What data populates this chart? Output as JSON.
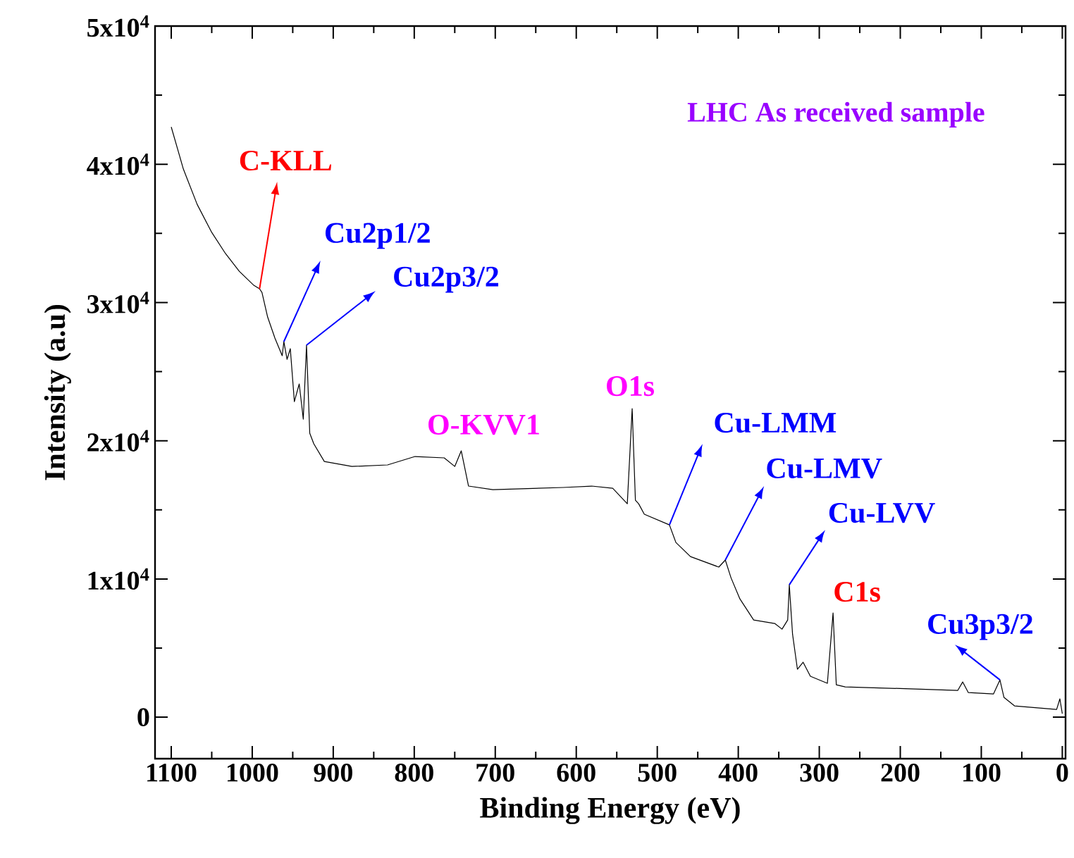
{
  "chart_data": {
    "type": "line",
    "xlabel": "Binding Energy (eV)",
    "ylabel": "Intensity (a.u)",
    "xlim": [
      1120,
      -4
    ],
    "ylim": [
      -3000,
      50000
    ],
    "xticks": [
      1100,
      1000,
      900,
      800,
      700,
      600,
      500,
      400,
      300,
      200,
      100,
      0
    ],
    "yticks": [
      0,
      {
        "value": 10000,
        "label": "1x10$^{4}$"
      },
      {
        "value": 20000,
        "label": "2x10$^{4}$"
      },
      {
        "value": 30000,
        "label": "3x10$^{4}$"
      },
      {
        "value": 40000,
        "label": "4x10$^{4}$"
      },
      {
        "value": 50000,
        "label": "5x10$^{4}$"
      }
    ],
    "grid": false,
    "marker": "none",
    "line_style": "solid",
    "series": [
      {
        "color": "#000000",
        "x": [
          1100,
          1085,
          1068,
          1050,
          1033,
          1016,
          998,
          991,
          988,
          981,
          972,
          963,
          961,
          957,
          953,
          948,
          942,
          937,
          933,
          929,
          924,
          911,
          877,
          833,
          799,
          763,
          750,
          742,
          733,
          703,
          616,
          581,
          555,
          537,
          531,
          527,
          523,
          516,
          485,
          477,
          459,
          424,
          416,
          409,
          398,
          381,
          355,
          346,
          339,
          337,
          333,
          327,
          320,
          311,
          290,
          283,
          279,
          268,
          181,
          129,
          123,
          116,
          85,
          77,
          72,
          59,
          7,
          3,
          0
        ],
        "values": [
          42700,
          39650,
          37100,
          35070,
          33540,
          32260,
          31240,
          30990,
          30730,
          28950,
          27420,
          26150,
          27170,
          25890,
          26660,
          22830,
          24110,
          21560,
          26910,
          20540,
          19780,
          18500,
          18140,
          18250,
          18860,
          18760,
          18140,
          19270,
          16720,
          16460,
          16620,
          16720,
          16560,
          15440,
          22320,
          15700,
          15440,
          14680,
          13910,
          12640,
          11620,
          10860,
          11370,
          10090,
          8560,
          7030,
          6780,
          6370,
          7030,
          9580,
          6010,
          3470,
          3980,
          2960,
          2450,
          7540,
          2340,
          2190,
          2040,
          1940,
          2550,
          1780,
          1680,
          2700,
          1430,
          820,
          560,
          1330,
          250
        ]
      }
    ],
    "annotations": [
      {
        "text": "C-KLL",
        "x": 991,
        "y": 30990
      },
      {
        "text": "Cu2p1/2",
        "x": 961,
        "y": 27170
      },
      {
        "text": "Cu2p3/2",
        "x": 933,
        "y": 26910
      },
      {
        "text": "O-KVV1",
        "x": 742,
        "y": 19270
      },
      {
        "text": "O1s",
        "x": 531,
        "y": 22320
      },
      {
        "text": "Cu-LMM",
        "x": 485,
        "y": 13910
      },
      {
        "text": "Cu-LMV",
        "x": 416,
        "y": 11370
      },
      {
        "text": "Cu-LVV",
        "x": 337,
        "y": 9580
      },
      {
        "text": "C1s",
        "x": 283,
        "y": 7540
      },
      {
        "text": "Cu3p3/2",
        "x": 77,
        "y": 2700
      },
      "LHC As received sample"
    ]
  }
}
